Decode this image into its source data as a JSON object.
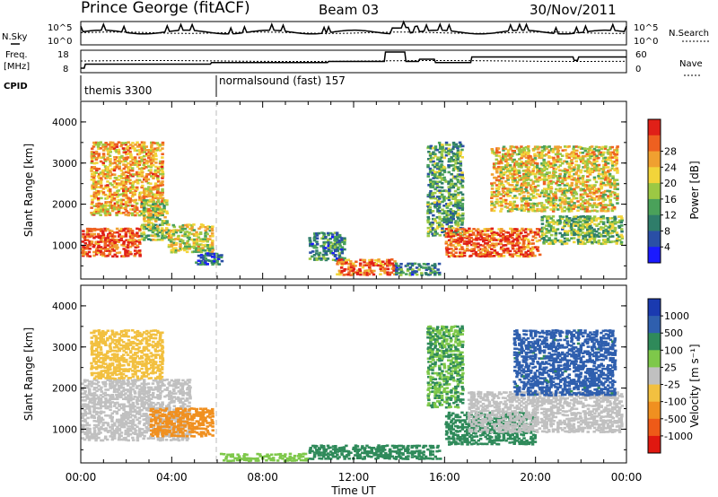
{
  "header": {
    "station": "Prince George (fitACF)",
    "beam": "Beam 03",
    "date": "30/Nov/2011"
  },
  "strips": {
    "nsky_label": "N.Sky",
    "nsky_ticks": [
      "10^5",
      "10^0"
    ],
    "nsearch_label": "N.Search",
    "nsearch_ticks": [
      "10^5",
      "10^0"
    ],
    "freq_label": "Freq.",
    "freq_unit": "[MHz]",
    "freq_ticks": [
      "18",
      "8"
    ],
    "nave_label": "Nave",
    "nave_ticks": [
      "60",
      "0"
    ],
    "cpid_label": "CPID",
    "cpid_entries": [
      {
        "label": "themis 3300",
        "start_hour": 0
      },
      {
        "label": "normalsound (fast) 157",
        "start_hour": 6
      }
    ]
  },
  "chart_data": [
    {
      "type": "heatmap",
      "name": "power",
      "ylabel": "Slant Range [km]",
      "xlabel": "Time UT",
      "xlim": [
        0,
        24
      ],
      "ylim": [
        180,
        4500
      ],
      "x_ticks": [
        "00:00",
        "04:00",
        "08:00",
        "12:00",
        "16:00",
        "20:00",
        "00:00"
      ],
      "y_ticks": [
        1000,
        2000,
        3000,
        4000
      ],
      "colorbar": {
        "label": "Power [dB]",
        "ticks": [
          "4",
          "8",
          "12",
          "16",
          "20",
          "24",
          "28"
        ],
        "colors": [
          "#1a1aff",
          "#2a4fa6",
          "#2f7d6a",
          "#4aa15a",
          "#9cc844",
          "#f2d43a",
          "#f0a030",
          "#ee6020",
          "#e02018"
        ]
      },
      "regions": [
        {
          "t0": 0.4,
          "t1": 3.6,
          "r0": 1700,
          "r1": 3500,
          "value": 22
        },
        {
          "t0": 0.0,
          "t1": 2.6,
          "r0": 700,
          "r1": 1400,
          "value": 28
        },
        {
          "t0": 2.6,
          "t1": 3.8,
          "r0": 1100,
          "r1": 2100,
          "value": 16
        },
        {
          "t0": 3.8,
          "t1": 5.8,
          "r0": 800,
          "r1": 1500,
          "value": 18
        },
        {
          "t0": 5.0,
          "t1": 6.2,
          "r0": 500,
          "r1": 800,
          "value": 8
        },
        {
          "t0": 10.0,
          "t1": 11.6,
          "r0": 600,
          "r1": 1300,
          "value": 10
        },
        {
          "t0": 11.2,
          "t1": 13.8,
          "r0": 250,
          "r1": 650,
          "value": 26
        },
        {
          "t0": 13.8,
          "t1": 15.8,
          "r0": 250,
          "r1": 550,
          "value": 10
        },
        {
          "t0": 15.2,
          "t1": 16.8,
          "r0": 1200,
          "r1": 3500,
          "value": 12
        },
        {
          "t0": 16.0,
          "t1": 20.2,
          "r0": 700,
          "r1": 1400,
          "value": 27
        },
        {
          "t0": 20.2,
          "t1": 23.8,
          "r0": 1000,
          "r1": 1700,
          "value": 14
        },
        {
          "t0": 18.0,
          "t1": 23.6,
          "r0": 1800,
          "r1": 3400,
          "value": 20
        }
      ]
    },
    {
      "type": "heatmap",
      "name": "velocity",
      "ylabel": "Slant Range [km]",
      "xlabel": "Time UT",
      "xlim": [
        0,
        24
      ],
      "ylim": [
        180,
        4500
      ],
      "x_ticks": [
        "00:00",
        "04:00",
        "08:00",
        "12:00",
        "16:00",
        "20:00",
        "00:00"
      ],
      "y_ticks": [
        1000,
        2000,
        3000,
        4000
      ],
      "colorbar": {
        "label": "Velocity [m s⁻¹]",
        "ticks": [
          "1000",
          "500",
          "100",
          "25",
          "-25",
          "-100",
          "-500",
          "-1000"
        ],
        "colors": [
          "#1a3ab0",
          "#2f5fae",
          "#2f8a5a",
          "#7ec84a",
          "#c0c0c0",
          "#f2c040",
          "#f09020",
          "#ee5a18",
          "#e01810"
        ]
      },
      "regions": [
        {
          "t0": 0.0,
          "t1": 4.8,
          "r0": 700,
          "r1": 2200,
          "value": 0
        },
        {
          "t0": 0.4,
          "t1": 3.6,
          "r0": 2200,
          "r1": 3400,
          "value": -50
        },
        {
          "t0": 3.0,
          "t1": 5.8,
          "r0": 800,
          "r1": 1500,
          "value": -200
        },
        {
          "t0": 6.0,
          "t1": 10.0,
          "r0": 200,
          "r1": 400,
          "value": 50
        },
        {
          "t0": 10.0,
          "t1": 15.8,
          "r0": 250,
          "r1": 600,
          "value": 200
        },
        {
          "t0": 15.2,
          "t1": 16.8,
          "r0": 1500,
          "r1": 3500,
          "value": 100
        },
        {
          "t0": 16.0,
          "t1": 20.0,
          "r0": 600,
          "r1": 1400,
          "value": 300
        },
        {
          "t0": 17.0,
          "t1": 23.8,
          "r0": 900,
          "r1": 1900,
          "value": 0
        },
        {
          "t0": 19.0,
          "t1": 23.5,
          "r0": 1800,
          "r1": 3400,
          "value": 700
        }
      ]
    }
  ]
}
